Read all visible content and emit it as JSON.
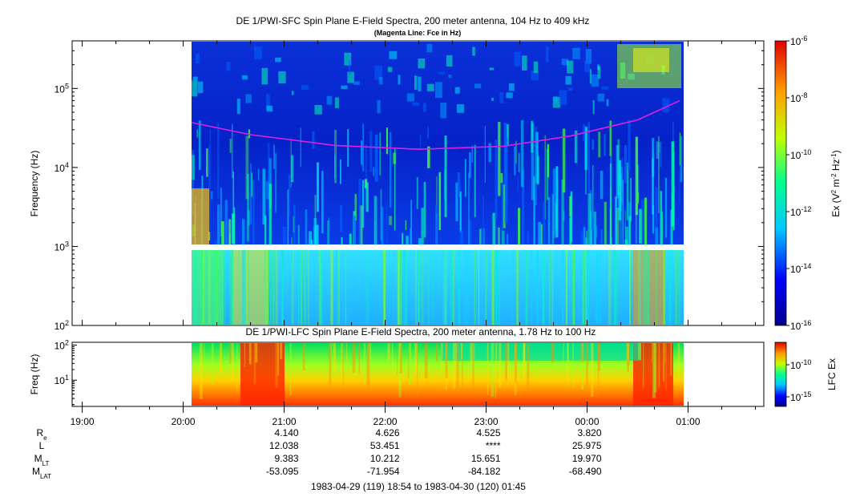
{
  "chart_data": [
    {
      "type": "heatmap",
      "title": "DE 1/PWI-SFC  Spin Plane E-Field Spectra, 200 meter antenna, 104 Hz to 409 kHz",
      "subtitle": "(Magenta Line: Fce in Hz)",
      "ylabel": "Frequency (Hz)",
      "yscale": "log",
      "ylim": [
        100,
        400000
      ],
      "yticks": [
        {
          "base": "10",
          "exp": "2"
        },
        {
          "base": "10",
          "exp": "3"
        },
        {
          "base": "10",
          "exp": "4"
        },
        {
          "base": "10",
          "exp": "5"
        }
      ],
      "colorbar": {
        "label": {
          "pre": "Ex (V",
          "e1": "2",
          "mid1": " m",
          "e2": "-2",
          "mid2": " Hz",
          "e3": "-1",
          "post": ")"
        },
        "scale": "log",
        "range": [
          1e-16,
          1e-06
        ],
        "ticks": [
          {
            "base": "10",
            "exp": "-6"
          },
          {
            "base": "10",
            "exp": "-8"
          },
          {
            "base": "10",
            "exp": "-10"
          },
          {
            "base": "10",
            "exp": "-12"
          },
          {
            "base": "10",
            "exp": "-14"
          },
          {
            "base": "10",
            "exp": "-16"
          }
        ]
      },
      "fce_line": {
        "color": "#e020e0",
        "x": [
          "20:05",
          "20:40",
          "21:30",
          "22:20",
          "23:10",
          "23:50",
          "00:30",
          "00:55"
        ],
        "y": [
          37000,
          26000,
          19000,
          17000,
          18500,
          25000,
          40000,
          70000
        ]
      }
    },
    {
      "type": "heatmap",
      "title": "DE 1/PWI-LFC  Spin Plane E-Field Spectra, 200 meter antenna, 1.78 Hz to 100 Hz",
      "ylabel": "Freq (Hz)",
      "yscale": "log",
      "ylim": [
        1.78,
        120
      ],
      "yticks": [
        {
          "base": "10",
          "exp": "1"
        },
        {
          "base": "10",
          "exp": "2"
        }
      ],
      "colorbar": {
        "label": "LFC Ex",
        "scale": "log",
        "ticks": [
          {
            "base": "10",
            "exp": "-10"
          },
          {
            "base": "10",
            "exp": "-15"
          }
        ]
      }
    }
  ],
  "time_axis": {
    "ticks": [
      "19:00",
      "20:00",
      "21:00",
      "22:00",
      "23:00",
      "00:00",
      "01:00"
    ],
    "range_label": "1983-04-29 (119) 18:54 to 1983-04-30 (120) 01:45"
  },
  "ephemeris": {
    "labels": [
      {
        "main": "R",
        "sub": "e"
      },
      {
        "main": "L",
        "sub": ""
      },
      {
        "main": "M",
        "sub": "LT"
      },
      {
        "main": "M",
        "sub": "LAT"
      }
    ],
    "columns": [
      "21:00",
      "22:00",
      "23:00",
      "00:00"
    ],
    "rows": [
      [
        "4.140",
        "4.626",
        "4.525",
        "3.820"
      ],
      [
        "12.038",
        "53.451",
        "****",
        "25.975"
      ],
      [
        "9.383",
        "10.212",
        "15.651",
        "19.970"
      ],
      [
        "-53.095",
        "-71.954",
        "-84.182",
        "-68.490"
      ]
    ]
  }
}
